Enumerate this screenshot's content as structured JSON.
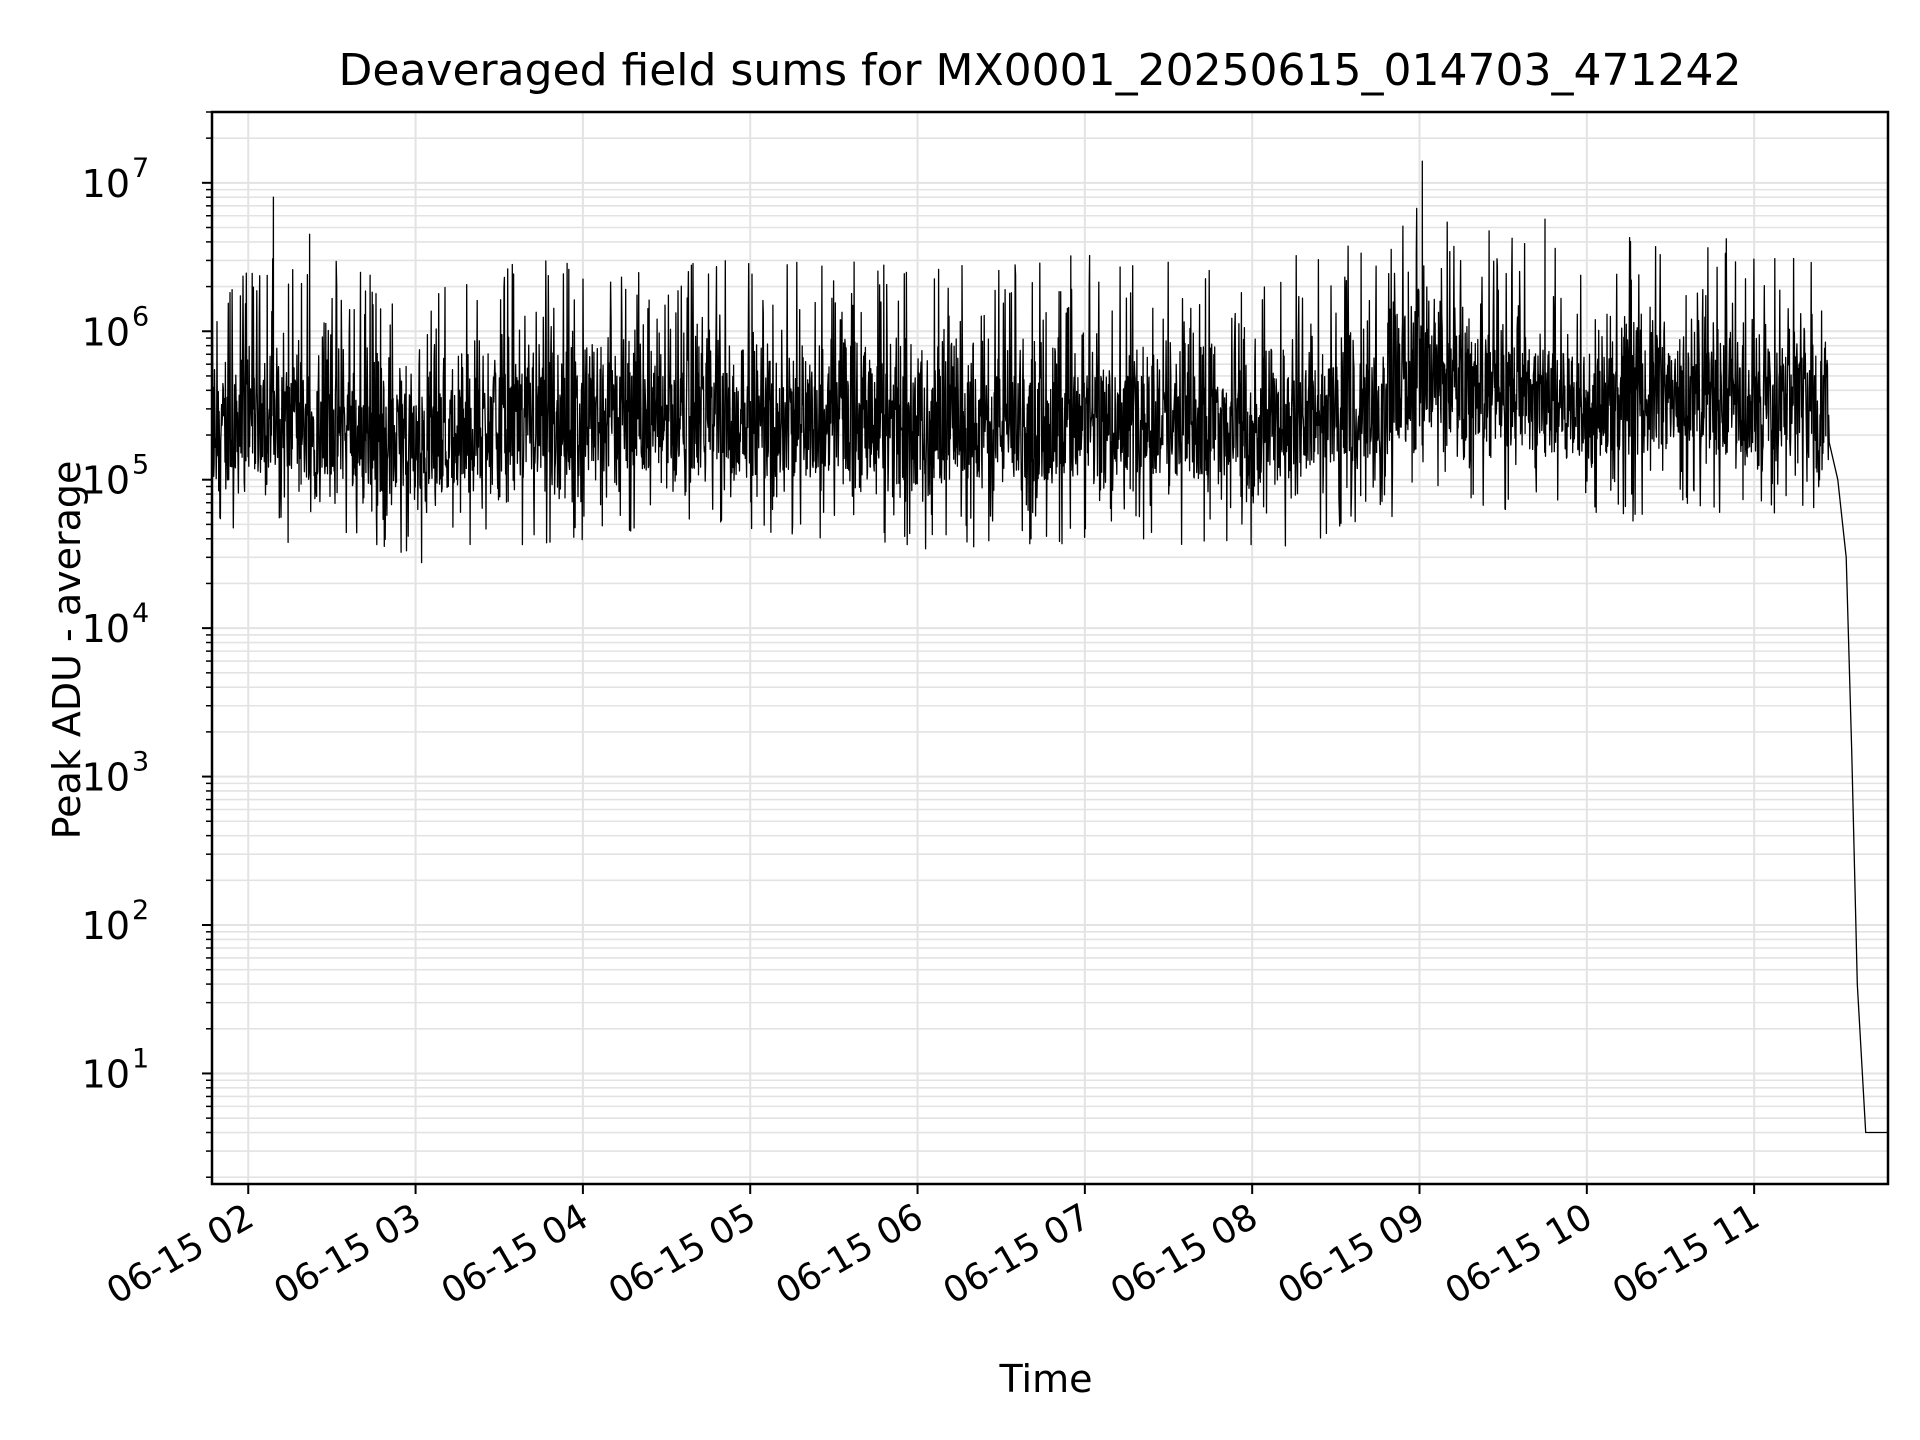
{
  "chart_data": {
    "type": "line",
    "title": "Deaveraged field sums for MX0001_20250615_014703_471242",
    "xlabel": "Time",
    "ylabel": "Peak ADU - average",
    "yscale": "log",
    "ylim": [
      1.8,
      30000000
    ],
    "xlim": [
      "2025-06-15T01:47",
      "2025-06-15T11:48"
    ],
    "grid": "on (major and minor, light gray)",
    "x_tick_labels": [
      "06-15 02",
      "06-15 03",
      "06-15 04",
      "06-15 05",
      "06-15 06",
      "06-15 07",
      "06-15 08",
      "06-15 09",
      "06-15 10",
      "06-15 11"
    ],
    "y_tick_labels": [
      {
        "base": "10",
        "exp": "1"
      },
      {
        "base": "10",
        "exp": "2"
      },
      {
        "base": "10",
        "exp": "3"
      },
      {
        "base": "10",
        "exp": "4"
      },
      {
        "base": "10",
        "exp": "5"
      },
      {
        "base": "10",
        "exp": "6"
      },
      {
        "base": "10",
        "exp": "7"
      }
    ],
    "series": [
      {
        "color": "#000000",
        "x": [
          "06-15 01:47",
          "06-15 02:00",
          "06-15 02:15",
          "06-15 02:30",
          "06-15 02:45",
          "06-15 03:00",
          "06-15 03:15",
          "06-15 03:30",
          "06-15 03:45",
          "06-15 04:00",
          "06-15 04:15",
          "06-15 04:30",
          "06-15 04:45",
          "06-15 05:00",
          "06-15 05:15",
          "06-15 05:30",
          "06-15 05:45",
          "06-15 06:00",
          "06-15 06:15",
          "06-15 06:30",
          "06-15 06:45",
          "06-15 07:00",
          "06-15 07:15",
          "06-15 07:30",
          "06-15 07:45",
          "06-15 08:00",
          "06-15 08:15",
          "06-15 08:30",
          "06-15 08:45",
          "06-15 09:00",
          "06-15 09:15",
          "06-15 09:30",
          "06-15 09:45",
          "06-15 10:00",
          "06-15 10:15",
          "06-15 10:30",
          "06-15 10:45",
          "06-15 11:00",
          "06-15 11:15",
          "06-15 11:27",
          "06-15 11:30",
          "06-15 11:33",
          "06-15 11:35",
          "06-15 11:37",
          "06-15 11:40",
          "06-15 11:48"
        ],
        "y": [
          200000,
          250000,
          220000,
          230000,
          180000,
          160000,
          200000,
          240000,
          220000,
          210000,
          260000,
          240000,
          250000,
          230000,
          220000,
          250000,
          240000,
          200000,
          210000,
          230000,
          220000,
          240000,
          260000,
          230000,
          220000,
          150000,
          240000,
          260000,
          280000,
          500000,
          420000,
          380000,
          330000,
          300000,
          320000,
          350000,
          330000,
          340000,
          380000,
          300000,
          100000,
          30000,
          1500,
          40,
          4,
          4
        ]
      }
    ],
    "notable_peaks": [
      {
        "x": "06-15 02:09",
        "y": 8000000
      },
      {
        "x": "06-15 02:22",
        "y": 4500000
      },
      {
        "x": "06-15 08:56",
        "y": 2500000
      },
      {
        "x": "06-15 09:01",
        "y": 14000000
      },
      {
        "x": "06-15 09:45",
        "y": 5700000
      }
    ]
  }
}
